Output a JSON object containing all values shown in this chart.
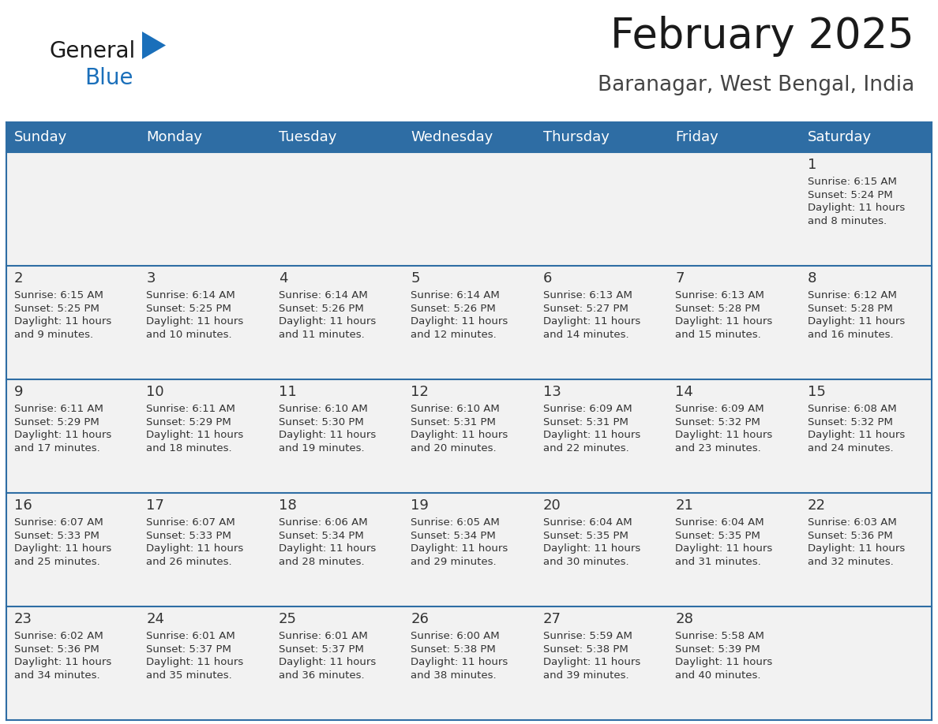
{
  "title": "February 2025",
  "subtitle": "Baranagar, West Bengal, India",
  "header_bg": "#2E6DA4",
  "header_text": "#FFFFFF",
  "cell_bg": "#F2F2F2",
  "cell_border_color": "#2E6DA4",
  "outer_border_color": "#2E6DA4",
  "day_names": [
    "Sunday",
    "Monday",
    "Tuesday",
    "Wednesday",
    "Thursday",
    "Friday",
    "Saturday"
  ],
  "days": [
    {
      "day": 1,
      "col": 6,
      "row": 0,
      "sunrise": "6:15 AM",
      "sunset": "5:24 PM",
      "daylight_hours": "11 hours",
      "daylight_min": "and 8 minutes."
    },
    {
      "day": 2,
      "col": 0,
      "row": 1,
      "sunrise": "6:15 AM",
      "sunset": "5:25 PM",
      "daylight_hours": "11 hours",
      "daylight_min": "and 9 minutes."
    },
    {
      "day": 3,
      "col": 1,
      "row": 1,
      "sunrise": "6:14 AM",
      "sunset": "5:25 PM",
      "daylight_hours": "11 hours",
      "daylight_min": "and 10 minutes."
    },
    {
      "day": 4,
      "col": 2,
      "row": 1,
      "sunrise": "6:14 AM",
      "sunset": "5:26 PM",
      "daylight_hours": "11 hours",
      "daylight_min": "and 11 minutes."
    },
    {
      "day": 5,
      "col": 3,
      "row": 1,
      "sunrise": "6:14 AM",
      "sunset": "5:26 PM",
      "daylight_hours": "11 hours",
      "daylight_min": "and 12 minutes."
    },
    {
      "day": 6,
      "col": 4,
      "row": 1,
      "sunrise": "6:13 AM",
      "sunset": "5:27 PM",
      "daylight_hours": "11 hours",
      "daylight_min": "and 14 minutes."
    },
    {
      "day": 7,
      "col": 5,
      "row": 1,
      "sunrise": "6:13 AM",
      "sunset": "5:28 PM",
      "daylight_hours": "11 hours",
      "daylight_min": "and 15 minutes."
    },
    {
      "day": 8,
      "col": 6,
      "row": 1,
      "sunrise": "6:12 AM",
      "sunset": "5:28 PM",
      "daylight_hours": "11 hours",
      "daylight_min": "and 16 minutes."
    },
    {
      "day": 9,
      "col": 0,
      "row": 2,
      "sunrise": "6:11 AM",
      "sunset": "5:29 PM",
      "daylight_hours": "11 hours",
      "daylight_min": "and 17 minutes."
    },
    {
      "day": 10,
      "col": 1,
      "row": 2,
      "sunrise": "6:11 AM",
      "sunset": "5:29 PM",
      "daylight_hours": "11 hours",
      "daylight_min": "and 18 minutes."
    },
    {
      "day": 11,
      "col": 2,
      "row": 2,
      "sunrise": "6:10 AM",
      "sunset": "5:30 PM",
      "daylight_hours": "11 hours",
      "daylight_min": "and 19 minutes."
    },
    {
      "day": 12,
      "col": 3,
      "row": 2,
      "sunrise": "6:10 AM",
      "sunset": "5:31 PM",
      "daylight_hours": "11 hours",
      "daylight_min": "and 20 minutes."
    },
    {
      "day": 13,
      "col": 4,
      "row": 2,
      "sunrise": "6:09 AM",
      "sunset": "5:31 PM",
      "daylight_hours": "11 hours",
      "daylight_min": "and 22 minutes."
    },
    {
      "day": 14,
      "col": 5,
      "row": 2,
      "sunrise": "6:09 AM",
      "sunset": "5:32 PM",
      "daylight_hours": "11 hours",
      "daylight_min": "and 23 minutes."
    },
    {
      "day": 15,
      "col": 6,
      "row": 2,
      "sunrise": "6:08 AM",
      "sunset": "5:32 PM",
      "daylight_hours": "11 hours",
      "daylight_min": "and 24 minutes."
    },
    {
      "day": 16,
      "col": 0,
      "row": 3,
      "sunrise": "6:07 AM",
      "sunset": "5:33 PM",
      "daylight_hours": "11 hours",
      "daylight_min": "and 25 minutes."
    },
    {
      "day": 17,
      "col": 1,
      "row": 3,
      "sunrise": "6:07 AM",
      "sunset": "5:33 PM",
      "daylight_hours": "11 hours",
      "daylight_min": "and 26 minutes."
    },
    {
      "day": 18,
      "col": 2,
      "row": 3,
      "sunrise": "6:06 AM",
      "sunset": "5:34 PM",
      "daylight_hours": "11 hours",
      "daylight_min": "and 28 minutes."
    },
    {
      "day": 19,
      "col": 3,
      "row": 3,
      "sunrise": "6:05 AM",
      "sunset": "5:34 PM",
      "daylight_hours": "11 hours",
      "daylight_min": "and 29 minutes."
    },
    {
      "day": 20,
      "col": 4,
      "row": 3,
      "sunrise": "6:04 AM",
      "sunset": "5:35 PM",
      "daylight_hours": "11 hours",
      "daylight_min": "and 30 minutes."
    },
    {
      "day": 21,
      "col": 5,
      "row": 3,
      "sunrise": "6:04 AM",
      "sunset": "5:35 PM",
      "daylight_hours": "11 hours",
      "daylight_min": "and 31 minutes."
    },
    {
      "day": 22,
      "col": 6,
      "row": 3,
      "sunrise": "6:03 AM",
      "sunset": "5:36 PM",
      "daylight_hours": "11 hours",
      "daylight_min": "and 32 minutes."
    },
    {
      "day": 23,
      "col": 0,
      "row": 4,
      "sunrise": "6:02 AM",
      "sunset": "5:36 PM",
      "daylight_hours": "11 hours",
      "daylight_min": "and 34 minutes."
    },
    {
      "day": 24,
      "col": 1,
      "row": 4,
      "sunrise": "6:01 AM",
      "sunset": "5:37 PM",
      "daylight_hours": "11 hours",
      "daylight_min": "and 35 minutes."
    },
    {
      "day": 25,
      "col": 2,
      "row": 4,
      "sunrise": "6:01 AM",
      "sunset": "5:37 PM",
      "daylight_hours": "11 hours",
      "daylight_min": "and 36 minutes."
    },
    {
      "day": 26,
      "col": 3,
      "row": 4,
      "sunrise": "6:00 AM",
      "sunset": "5:38 PM",
      "daylight_hours": "11 hours",
      "daylight_min": "and 38 minutes."
    },
    {
      "day": 27,
      "col": 4,
      "row": 4,
      "sunrise": "5:59 AM",
      "sunset": "5:38 PM",
      "daylight_hours": "11 hours",
      "daylight_min": "and 39 minutes."
    },
    {
      "day": 28,
      "col": 5,
      "row": 4,
      "sunrise": "5:58 AM",
      "sunset": "5:39 PM",
      "daylight_hours": "11 hours",
      "daylight_min": "and 40 minutes."
    }
  ],
  "n_rows": 5,
  "n_cols": 7,
  "logo_color_general": "#1a1a1a",
  "logo_color_blue": "#1a6fba",
  "logo_triangle_color": "#1a6fba",
  "title_color": "#1a1a1a",
  "subtitle_color": "#444444",
  "day_num_color": "#333333",
  "cell_text_color": "#333333",
  "title_fontsize": 38,
  "subtitle_fontsize": 19,
  "header_fontsize": 13,
  "day_num_fontsize": 13,
  "cell_text_fontsize": 9.5
}
